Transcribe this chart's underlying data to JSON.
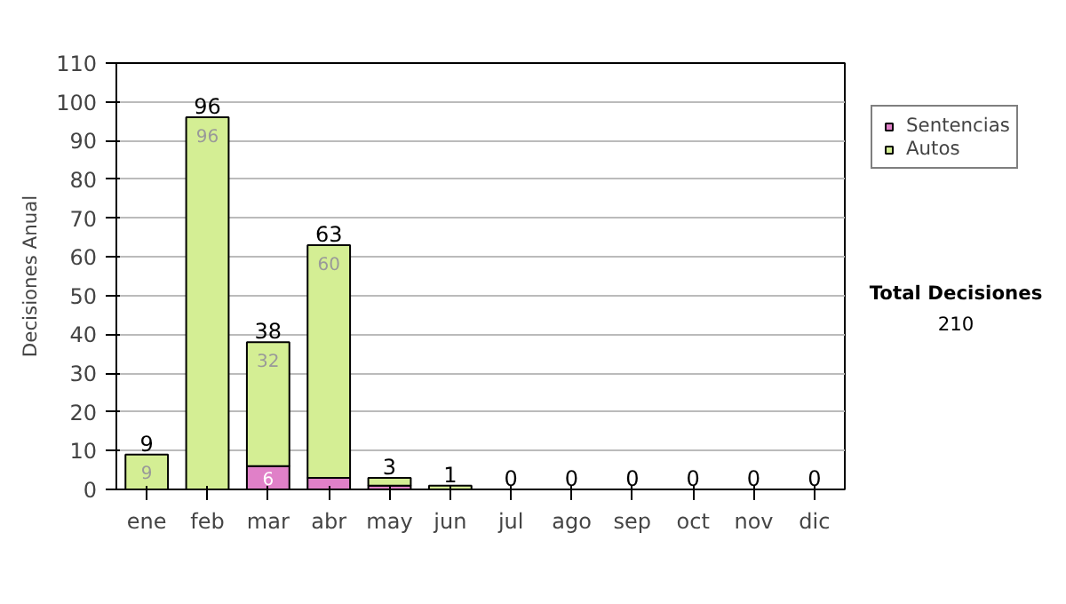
{
  "chart_data": {
    "type": "bar",
    "stacked": true,
    "ylabel": "Decisiones Anual",
    "categories": [
      "ene",
      "feb",
      "mar",
      "abr",
      "may",
      "jun",
      "jul",
      "ago",
      "sep",
      "oct",
      "nov",
      "dic"
    ],
    "series": [
      {
        "name": "Sentencias",
        "color": "#e080c8",
        "values": [
          0,
          0,
          6,
          3,
          1,
          0,
          0,
          0,
          0,
          0,
          0,
          0
        ],
        "value_labels": [
          null,
          null,
          "6",
          null,
          null,
          null,
          null,
          null,
          null,
          null,
          null,
          null
        ]
      },
      {
        "name": "Autos",
        "color": "#d4ee94",
        "values": [
          9,
          96,
          32,
          60,
          2,
          1,
          0,
          0,
          0,
          0,
          0,
          0
        ],
        "value_labels": [
          "9",
          "96",
          "32",
          "60",
          null,
          null,
          null,
          null,
          null,
          null,
          null,
          null
        ]
      }
    ],
    "totals": [
      "9",
      "96",
      "38",
      "63",
      "3",
      "1",
      "0",
      "0",
      "0",
      "0",
      "0",
      "0"
    ],
    "ylim": [
      0,
      110
    ],
    "yticks": [
      0,
      10,
      20,
      30,
      40,
      50,
      60,
      70,
      80,
      90,
      100,
      110
    ],
    "grid": "y",
    "legend": "right",
    "annotations": [
      "Total Decisiones",
      "210"
    ]
  }
}
